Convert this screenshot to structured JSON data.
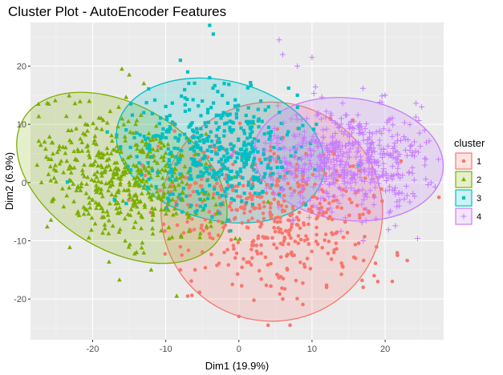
{
  "chart_data": {
    "type": "scatter",
    "title": "Cluster Plot - AutoEncoder Features",
    "xlabel": "Dim1 (19.9%)",
    "ylabel": "Dim2 (6.9%)",
    "xlim": [
      -28.5,
      28
    ],
    "ylim": [
      -27,
      27.5
    ],
    "x_ticks": [
      -20,
      -10,
      0,
      10,
      20
    ],
    "y_ticks": [
      -20,
      -10,
      0,
      10,
      20
    ],
    "x_tick_labels": [
      "-20",
      "-10",
      "0",
      "10",
      "20"
    ],
    "y_tick_labels": [
      "-20",
      "-10",
      "0",
      "10",
      "20"
    ],
    "grid": true,
    "background": "#ebebeb",
    "legend": {
      "title": "cluster",
      "position": "right",
      "entries": [
        "1",
        "2",
        "3",
        "4"
      ]
    },
    "series": [
      {
        "name": "1",
        "marker": "circle",
        "color": "#f8766d",
        "ellipse": {
          "cx": 4.5,
          "cy": -5,
          "rx": 15,
          "ry": 19,
          "angle_deg": 82
        },
        "n_points": 480,
        "points_sample": [
          [
            -8,
            -15
          ],
          [
            -7,
            -19.5
          ],
          [
            0,
            -23
          ],
          [
            4,
            -24.5
          ],
          [
            7,
            -24.5
          ],
          [
            17,
            -18
          ],
          [
            18.5,
            -16
          ],
          [
            10,
            -5
          ],
          [
            12,
            -18
          ],
          [
            2,
            -10
          ],
          [
            -2,
            -12
          ],
          [
            -6,
            -15
          ],
          [
            6,
            -20
          ],
          [
            13,
            -12
          ],
          [
            19,
            -17
          ]
        ]
      },
      {
        "name": "2",
        "marker": "triangle",
        "color": "#7cae00",
        "ellipse": {
          "cx": -16,
          "cy": 0.8,
          "rx": 15.7,
          "ry": 12.4,
          "angle_deg": -31
        },
        "n_points": 520,
        "points_sample": [
          [
            -16,
            19.5
          ],
          [
            -15,
            18.5
          ],
          [
            -13,
            17
          ],
          [
            -26,
            4
          ],
          [
            -27,
            0
          ],
          [
            -12,
            -15
          ],
          [
            -14,
            -12
          ],
          [
            -8.5,
            -19.5
          ],
          [
            -21,
            10
          ],
          [
            -18,
            5
          ],
          [
            -22,
            -5
          ],
          [
            -20,
            -3
          ],
          [
            -15,
            0
          ],
          [
            -10,
            2
          ],
          [
            -25,
            2
          ]
        ]
      },
      {
        "name": "3",
        "marker": "square",
        "color": "#00bfc4",
        "ellipse": {
          "cx": -2.5,
          "cy": 5.5,
          "rx": 14.5,
          "ry": 12,
          "angle_deg": -14
        },
        "n_points": 460,
        "points_sample": [
          [
            -4,
            27
          ],
          [
            -3.5,
            25.5
          ],
          [
            -8,
            21
          ],
          [
            -4,
            18
          ],
          [
            -7,
            19
          ],
          [
            -2,
            17
          ],
          [
            3,
            14
          ],
          [
            -13,
            12
          ],
          [
            -11,
            8
          ],
          [
            1,
            5
          ],
          [
            -6,
            3
          ],
          [
            -9,
            -2
          ],
          [
            3,
            0
          ],
          [
            -5,
            14
          ],
          [
            8,
            15
          ]
        ]
      },
      {
        "name": "4",
        "marker": "plus",
        "color": "#c77cff",
        "ellipse": {
          "cx": 15,
          "cy": 4,
          "rx": 13,
          "ry": 10.5,
          "angle_deg": -7
        },
        "n_points": 560,
        "points_sample": [
          [
            5.5,
            24.5
          ],
          [
            6,
            22
          ],
          [
            8,
            20
          ],
          [
            10,
            21.5
          ],
          [
            25,
            13
          ],
          [
            24,
            7
          ],
          [
            20,
            15
          ],
          [
            15,
            10
          ],
          [
            12,
            6
          ],
          [
            18,
            0
          ],
          [
            22,
            -3
          ],
          [
            14,
            11
          ],
          [
            17,
            -10
          ],
          [
            16,
            7
          ],
          [
            9,
            3
          ]
        ]
      }
    ]
  }
}
